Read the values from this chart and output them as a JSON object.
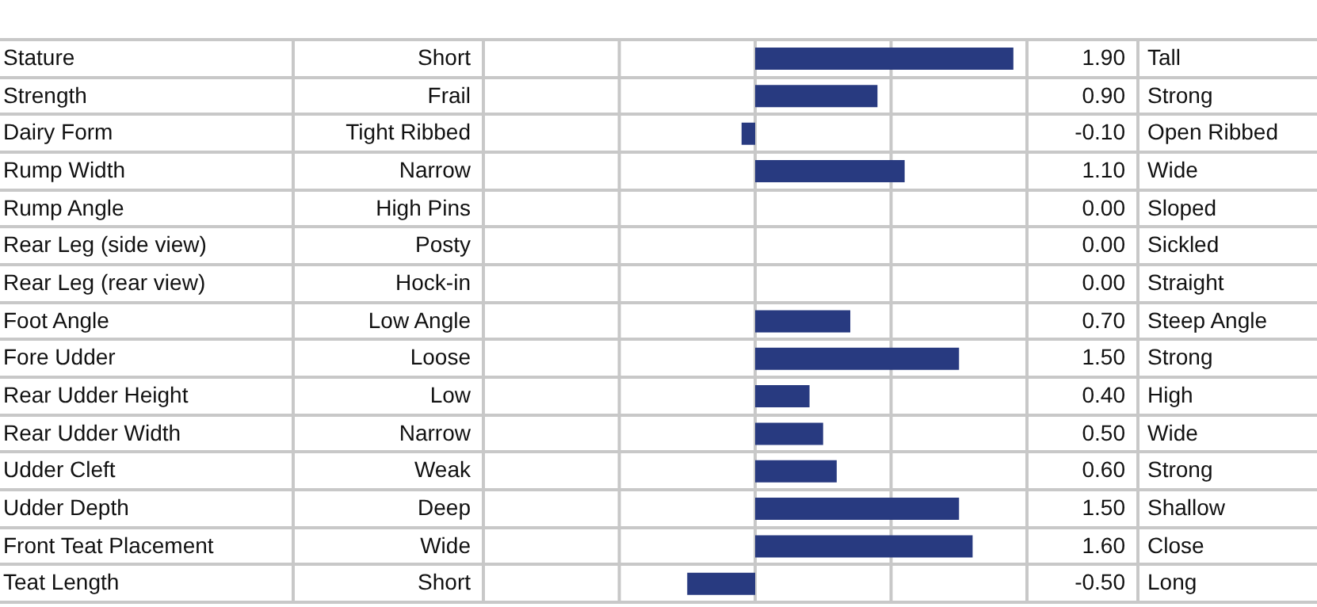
{
  "chart_data": {
    "type": "bar",
    "orientation": "horizontal",
    "categories": [
      "Stature",
      "Strength",
      "Dairy Form",
      "Rump Width",
      "Rump Angle",
      "Rear Leg (side view)",
      "Rear Leg (rear view)",
      "Foot Angle",
      "Fore Udder",
      "Rear Udder Height",
      "Rear Udder Width",
      "Udder Cleft",
      "Udder Depth",
      "Front Teat Placement",
      "Teat Length"
    ],
    "values": [
      1.9,
      0.9,
      -0.1,
      1.1,
      0,
      0,
      0,
      0.7,
      1.5,
      0.4,
      0.5,
      0.6,
      1.5,
      1.6,
      -0.5
    ],
    "value_labels": [
      "1.90",
      "0.90",
      "-0.10",
      "1.10",
      "0.00",
      "0.00",
      "0.00",
      "0.70",
      "1.50",
      "0.40",
      "0.50",
      "0.60",
      "1.50",
      "1.60",
      "-0.50"
    ],
    "color": "#283a80",
    "xlim": [
      -2,
      2
    ],
    "tick_labels": false,
    "grid": "x",
    "annotations": [
      "Short",
      "Frail",
      "Tight Ribbed",
      "Narrow",
      "High Pins",
      "Posty",
      "Hock-in",
      "Low Angle",
      "Loose",
      "Low",
      "Narrow",
      "Weak",
      "Deep",
      "Wide",
      "Short",
      "Tall",
      "Strong",
      "Open Ribbed",
      "Wide",
      "Sloped",
      "Sickled",
      "Straight",
      "Steep Angle",
      "Strong",
      "High",
      "Wide",
      "Strong",
      "Shallow",
      "Close",
      "Long"
    ]
  }
}
